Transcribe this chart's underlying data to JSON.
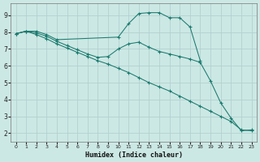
{
  "xlabel": "Humidex (Indice chaleur)",
  "ylabel": "",
  "bg_color": "#cce8e4",
  "grid_color": "#b0cccc",
  "line_color": "#1a7a6e",
  "xlim": [
    -0.5,
    23.5
  ],
  "ylim": [
    1.5,
    9.7
  ],
  "xticks": [
    0,
    1,
    2,
    3,
    4,
    5,
    6,
    7,
    8,
    9,
    10,
    11,
    12,
    13,
    14,
    15,
    16,
    17,
    18,
    19,
    20,
    21,
    22,
    23
  ],
  "yticks": [
    2,
    3,
    4,
    5,
    6,
    7,
    8,
    9
  ],
  "curves": [
    {
      "x": [
        0,
        1,
        2,
        3,
        4,
        10,
        11,
        12,
        13,
        14,
        15,
        16,
        17,
        18
      ],
      "y": [
        7.9,
        8.05,
        8.05,
        7.85,
        7.55,
        7.7,
        8.5,
        9.1,
        9.15,
        9.15,
        8.85,
        8.85,
        8.3,
        6.3
      ]
    },
    {
      "x": [
        0,
        1,
        2,
        3,
        4,
        5,
        6,
        7,
        8,
        9,
        10,
        11,
        12,
        13,
        14,
        15,
        16,
        17,
        18,
        19,
        20,
        21,
        22,
        23
      ],
      "y": [
        7.9,
        8.05,
        7.95,
        7.75,
        7.45,
        7.2,
        6.95,
        6.7,
        6.5,
        6.55,
        7.0,
        7.3,
        7.4,
        7.1,
        6.85,
        6.7,
        6.55,
        6.4,
        6.2,
        5.1,
        3.8,
        2.9,
        2.15,
        2.2
      ]
    },
    {
      "x": [
        0,
        1,
        2,
        3,
        4,
        5,
        6,
        7,
        8,
        9,
        10,
        11,
        12,
        13,
        14,
        15,
        16,
        17,
        18,
        19,
        20,
        21,
        22,
        23
      ],
      "y": [
        7.9,
        8.05,
        7.85,
        7.6,
        7.3,
        7.05,
        6.8,
        6.55,
        6.3,
        6.1,
        5.85,
        5.6,
        5.3,
        5.0,
        4.75,
        4.5,
        4.2,
        3.9,
        3.6,
        3.3,
        3.0,
        2.7,
        2.2,
        2.15
      ]
    }
  ]
}
